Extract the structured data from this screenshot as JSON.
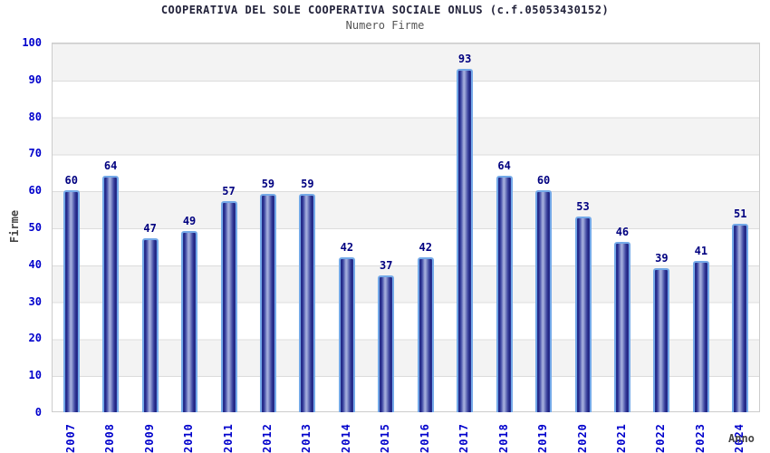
{
  "chart_data": {
    "type": "bar",
    "title": "COOPERATIVA DEL SOLE COOPERATIVA SOCIALE ONLUS (c.f.05053430152)",
    "subtitle": "Numero Firme",
    "xlabel": "Anno",
    "ylabel": "Firme",
    "categories": [
      "2007",
      "2008",
      "2009",
      "2010",
      "2011",
      "2012",
      "2013",
      "2014",
      "2015",
      "2016",
      "2017",
      "2018",
      "2019",
      "2020",
      "2021",
      "2022",
      "2023",
      "2024"
    ],
    "values": [
      60,
      64,
      47,
      49,
      57,
      59,
      59,
      42,
      37,
      42,
      93,
      64,
      60,
      53,
      46,
      39,
      41,
      51
    ],
    "ylim": [
      0,
      100
    ],
    "ytick_step": 10,
    "grid": "horizontal-bands",
    "legend": "none",
    "colors": {
      "bar_dark": "#20257f",
      "bar_light": "#a8b1de",
      "bar_border": "#74a9e8",
      "tick_label": "#0000cc",
      "value_label": "#000080",
      "title": "#22223a",
      "subtitle": "#555555",
      "axis_label": "#444444",
      "band": "#f3f3f3",
      "gridline": "#dcdcdc",
      "plot_border": "#cccccc"
    }
  }
}
